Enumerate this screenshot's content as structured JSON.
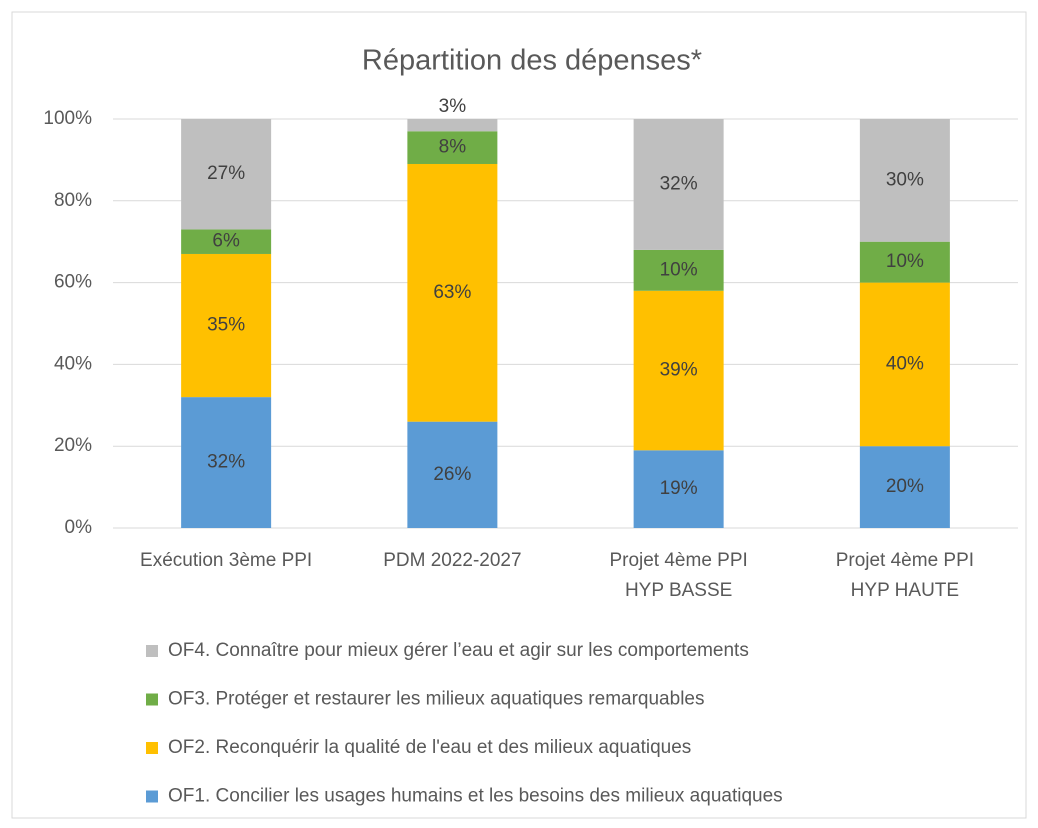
{
  "chart_data": {
    "type": "stacked_bar",
    "title": "Répartition des dépenses*",
    "categories": [
      "Exécution 3ème PPI",
      "PDM 2022-2027",
      "Projet 4ème PPI\nHYP BASSE",
      "Projet 4ème PPI\nHYP HAUTE"
    ],
    "series": [
      {
        "name": "OF1. Concilier les usages humains et les besoins des milieux aquatiques",
        "color": "#5b9bd5",
        "values": [
          32,
          26,
          19,
          20
        ],
        "value_labels": [
          "32%",
          "26%",
          "19%",
          "20%"
        ]
      },
      {
        "name": "OF2. Reconquérir la qualité de l'eau et des milieux aquatiques",
        "color": "#ffc000",
        "values": [
          35,
          63,
          39,
          40
        ],
        "value_labels": [
          "35%",
          "63%",
          "39%",
          "40%"
        ]
      },
      {
        "name": "OF3. Protéger et restaurer les milieux aquatiques remarquables",
        "color": "#70ad47",
        "values": [
          6,
          8,
          10,
          10
        ],
        "value_labels": [
          "6%",
          "8%",
          "10%",
          "10%"
        ]
      },
      {
        "name": "OF4. Connaître pour mieux gérer l’eau et agir sur les comportements",
        "color": "#bfbfbf",
        "values": [
          27,
          3,
          32,
          30
        ],
        "value_labels": [
          "27%",
          "3%",
          "32%",
          "30%"
        ]
      }
    ],
    "ylim": [
      0,
      100
    ],
    "yticks": [
      {
        "value": 0,
        "label": "0%"
      },
      {
        "value": 20,
        "label": "20%"
      },
      {
        "value": 40,
        "label": "40%"
      },
      {
        "value": 60,
        "label": "60%"
      },
      {
        "value": 80,
        "label": "80%"
      },
      {
        "value": 100,
        "label": "100%"
      }
    ],
    "grid": true,
    "legend": "bottom"
  }
}
